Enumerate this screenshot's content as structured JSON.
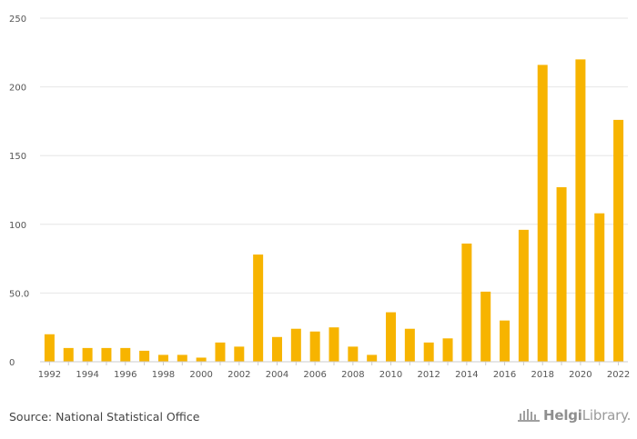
{
  "chart_data": {
    "type": "bar",
    "title": "",
    "xlabel": "",
    "ylabel": "",
    "ylim": [
      0,
      250
    ],
    "yticks": [
      "0",
      "50.0",
      "100",
      "150",
      "200",
      "250"
    ],
    "grid": true,
    "legend": "none",
    "bar_color": "#F7B400",
    "categories": [
      "1992",
      "1993",
      "1994",
      "1995",
      "1996",
      "1997",
      "1998",
      "1999",
      "2000",
      "2001",
      "2002",
      "2003",
      "2004",
      "2005",
      "2006",
      "2007",
      "2008",
      "2009",
      "2010",
      "2011",
      "2012",
      "2013",
      "2014",
      "2015",
      "2016",
      "2017",
      "2018",
      "2019",
      "2020",
      "2021",
      "2022"
    ],
    "xtick_labels": [
      "1992",
      "1994",
      "1996",
      "1998",
      "2000",
      "2002",
      "2004",
      "2006",
      "2008",
      "2010",
      "2012",
      "2014",
      "2016",
      "2018",
      "2020",
      "2022"
    ],
    "values": [
      20,
      10,
      10,
      10,
      10,
      8,
      5,
      5,
      3,
      14,
      11,
      78,
      18,
      24,
      22,
      25,
      11,
      5,
      36,
      24,
      14,
      17,
      86,
      51,
      30,
      96,
      216,
      127,
      220,
      108,
      176
    ]
  },
  "footer": {
    "source": "Source: National Statistical Office",
    "logo_text_bold": "Helgi",
    "logo_text": "Library."
  }
}
